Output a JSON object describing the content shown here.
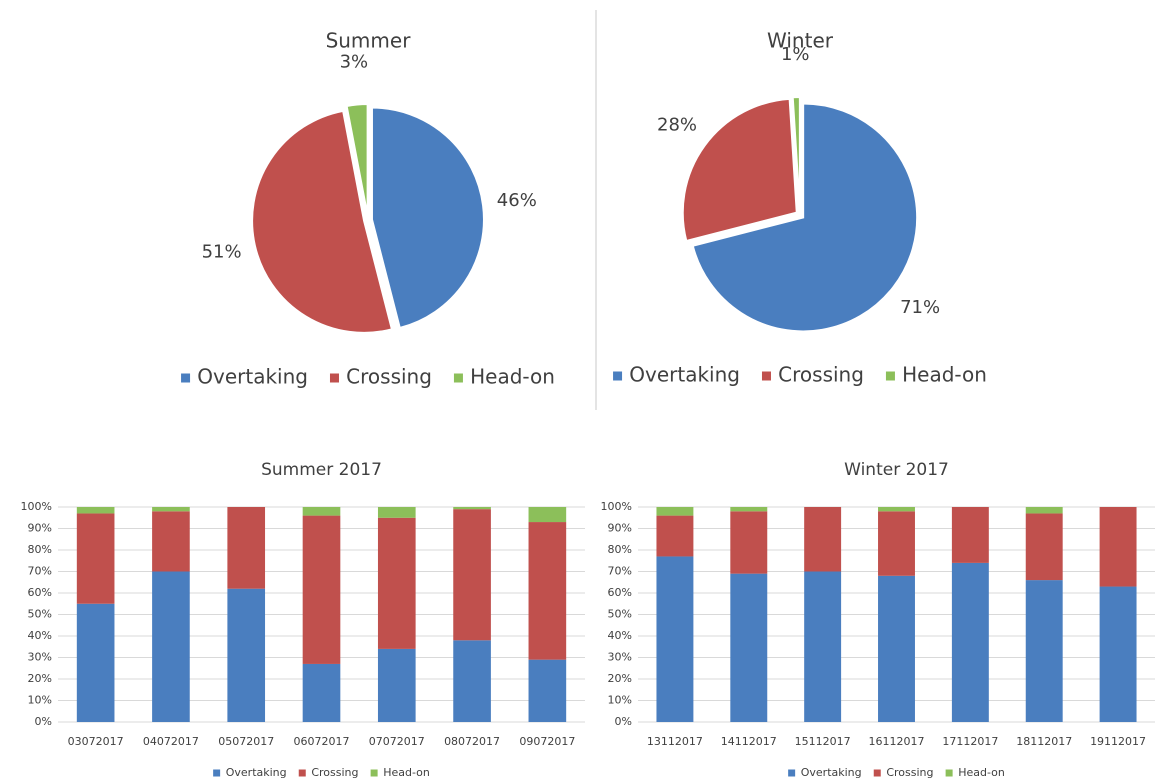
{
  "chart_data": [
    {
      "type": "pie",
      "title": "Summer",
      "categories": [
        "Overtaking",
        "Crossing",
        "Head-on"
      ],
      "values": [
        46,
        51,
        3
      ],
      "value_labels": [
        "46%",
        "51%",
        "3%"
      ],
      "colors": [
        "#4a7ebf",
        "#c0504d",
        "#8cbf5a"
      ]
    },
    {
      "type": "pie",
      "title": "Winter",
      "categories": [
        "Overtaking",
        "Crossing",
        "Head-on"
      ],
      "values": [
        71,
        28,
        1
      ],
      "value_labels": [
        "71%",
        "28%",
        "1%"
      ],
      "colors": [
        "#4a7ebf",
        "#c0504d",
        "#8cbf5a"
      ]
    },
    {
      "type": "stacked-bar",
      "title": "Summer 2017",
      "categories": [
        "03072017",
        "04072017",
        "05072017",
        "06072017",
        "07072017",
        "08072017",
        "09072017"
      ],
      "series": [
        {
          "name": "Overtaking",
          "color": "#4a7ebf",
          "values": [
            55,
            70,
            62,
            27,
            34,
            38,
            29
          ]
        },
        {
          "name": "Crossing",
          "color": "#c0504d",
          "values": [
            42,
            28,
            38,
            69,
            61,
            61,
            64
          ]
        },
        {
          "name": "Head-on",
          "color": "#8cbf5a",
          "values": [
            3,
            2,
            0,
            4,
            5,
            1,
            7
          ]
        }
      ],
      "ylim": [
        0,
        100
      ],
      "yticks": [
        {
          "value": 0,
          "label": "0%"
        },
        {
          "value": 10,
          "label": "10%"
        },
        {
          "value": 20,
          "label": "20%"
        },
        {
          "value": 30,
          "label": "30%"
        },
        {
          "value": 40,
          "label": "40%"
        },
        {
          "value": 50,
          "label": "50%"
        },
        {
          "value": 60,
          "label": "60%"
        },
        {
          "value": 70,
          "label": "70%"
        },
        {
          "value": 80,
          "label": "80%"
        },
        {
          "value": 90,
          "label": "90%"
        },
        {
          "value": 100,
          "label": "100%"
        }
      ],
      "grid": true
    },
    {
      "type": "stacked-bar",
      "title": "Winter 2017",
      "categories": [
        "13112017",
        "14112017",
        "15112017",
        "16112017",
        "17112017",
        "18112017",
        "19112017"
      ],
      "series": [
        {
          "name": "Overtaking",
          "color": "#4a7ebf",
          "values": [
            77,
            69,
            70,
            68,
            74,
            66,
            63
          ]
        },
        {
          "name": "Crossing",
          "color": "#c0504d",
          "values": [
            19,
            29,
            30,
            30,
            26,
            31,
            37
          ]
        },
        {
          "name": "Head-on",
          "color": "#8cbf5a",
          "values": [
            4,
            2,
            0,
            2,
            0,
            3,
            0
          ]
        }
      ],
      "ylim": [
        0,
        100
      ],
      "yticks": [
        {
          "value": 0,
          "label": "0%"
        },
        {
          "value": 10,
          "label": "10%"
        },
        {
          "value": 20,
          "label": "20%"
        },
        {
          "value": 30,
          "label": "30%"
        },
        {
          "value": 40,
          "label": "40%"
        },
        {
          "value": 50,
          "label": "50%"
        },
        {
          "value": 60,
          "label": "60%"
        },
        {
          "value": 70,
          "label": "70%"
        },
        {
          "value": 80,
          "label": "80%"
        },
        {
          "value": 90,
          "label": "90%"
        },
        {
          "value": 100,
          "label": "100%"
        }
      ],
      "grid": true
    }
  ]
}
